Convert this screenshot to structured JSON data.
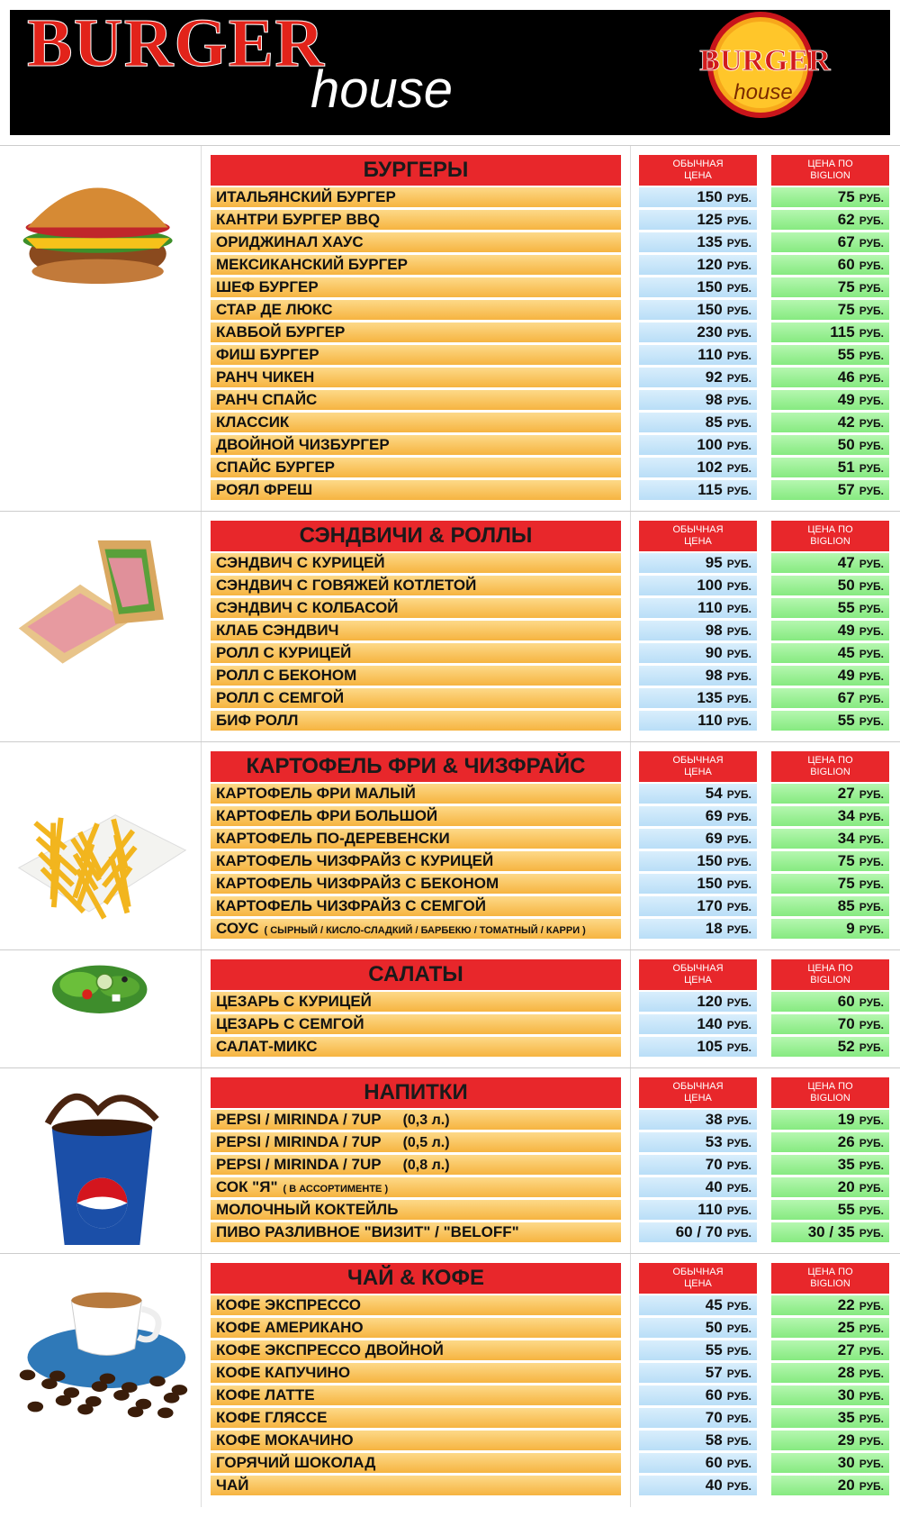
{
  "header": {
    "title": "BURGER",
    "subtitle": "house"
  },
  "logo": {
    "title": "BURGER",
    "subtitle": "house"
  },
  "columns": {
    "regular": "ОБЫЧНАЯ ЦЕНА",
    "biglion": "ЦЕНА ПО BIGLION"
  },
  "currency": "РУБ.",
  "sections": [
    {
      "title": "БУРГЕРЫ",
      "items": [
        {
          "name": "ИТАЛЬЯНСКИЙ БУРГЕР",
          "price": 150,
          "biglion": 75
        },
        {
          "name": "КАНТРИ БУРГЕР BBQ",
          "price": 125,
          "biglion": 62
        },
        {
          "name": "ОРИДЖИНАЛ ХАУС",
          "price": 135,
          "biglion": 67
        },
        {
          "name": "МЕКСИКАНСКИЙ БУРГЕР",
          "price": 120,
          "biglion": 60
        },
        {
          "name": "ШЕФ БУРГЕР",
          "price": 150,
          "biglion": 75
        },
        {
          "name": "СТАР ДЕ ЛЮКС",
          "price": 150,
          "biglion": 75
        },
        {
          "name": "КАВБОЙ БУРГЕР",
          "price": 230,
          "biglion": 115
        },
        {
          "name": "ФИШ БУРГЕР",
          "price": 110,
          "biglion": 55
        },
        {
          "name": "РАНЧ ЧИКЕН",
          "price": 92,
          "biglion": 46
        },
        {
          "name": "РАНЧ СПАЙС",
          "price": 98,
          "biglion": 49
        },
        {
          "name": "КЛАССИК",
          "price": 85,
          "biglion": 42
        },
        {
          "name": "ДВОЙНОЙ ЧИЗБУРГЕР",
          "price": 100,
          "biglion": 50
        },
        {
          "name": "СПАЙС БУРГЕР",
          "price": 102,
          "biglion": 51
        },
        {
          "name": "РОЯЛ ФРЕШ",
          "price": 115,
          "biglion": 57
        }
      ]
    },
    {
      "title": "СЭНДВИЧИ & РОЛЛЫ",
      "items": [
        {
          "name": "СЭНДВИЧ С КУРИЦЕЙ",
          "price": 95,
          "biglion": 47
        },
        {
          "name": "СЭНДВИЧ С ГОВЯЖЕЙ КОТЛЕТОЙ",
          "price": 100,
          "biglion": 50
        },
        {
          "name": "СЭНДВИЧ С КОЛБАСОЙ",
          "price": 110,
          "biglion": 55
        },
        {
          "name": "КЛАБ СЭНДВИЧ",
          "price": 98,
          "biglion": 49
        },
        {
          "name": "РОЛЛ С КУРИЦЕЙ",
          "price": 90,
          "biglion": 45
        },
        {
          "name": "РОЛЛ С БЕКОНОМ",
          "price": 98,
          "biglion": 49
        },
        {
          "name": "РОЛЛ С СЕМГОЙ",
          "price": 135,
          "biglion": 67
        },
        {
          "name": "БИФ РОЛЛ",
          "price": 110,
          "biglion": 55
        }
      ]
    },
    {
      "title": "КАРТОФЕЛЬ ФРИ & ЧИЗФРАЙС",
      "items": [
        {
          "name": "КАРТОФЕЛЬ ФРИ МАЛЫЙ",
          "price": 54,
          "biglion": 27
        },
        {
          "name": "КАРТОФЕЛЬ ФРИ БОЛЬШОЙ",
          "price": 69,
          "biglion": 34
        },
        {
          "name": "КАРТОФЕЛЬ ПО-ДЕРЕВЕНСКИ",
          "price": 69,
          "biglion": 34
        },
        {
          "name": "КАРТОФЕЛЬ ЧИЗФРАЙЗ С КУРИЦЕЙ",
          "price": 150,
          "biglion": 75
        },
        {
          "name": "КАРТОФЕЛЬ ЧИЗФРАЙЗ С БЕКОНОМ",
          "price": 150,
          "biglion": 75
        },
        {
          "name": "КАРТОФЕЛЬ ЧИЗФРАЙЗ С СЕМГОЙ",
          "price": 170,
          "biglion": 85
        },
        {
          "name": "СОУС",
          "note": "( СЫРНЫЙ / КИСЛО-СЛАДКИЙ / БАРБЕКЮ / ТОМАТНЫЙ / КАРРИ )",
          "price": 18,
          "biglion": 9
        }
      ]
    },
    {
      "title": "САЛАТЫ",
      "items": [
        {
          "name": "ЦЕЗАРЬ С КУРИЦЕЙ",
          "price": 120,
          "biglion": 60
        },
        {
          "name": "ЦЕЗАРЬ С СЕМГОЙ",
          "price": 140,
          "biglion": 70
        },
        {
          "name": "САЛАТ-МИКС",
          "price": 105,
          "biglion": 52
        }
      ]
    },
    {
      "title": "НАПИТКИ",
      "items": [
        {
          "name": "PEPSI / MIRINDA / 7UP",
          "note": "(0,3 л.)",
          "price": 38,
          "biglion": 19
        },
        {
          "name": "PEPSI / MIRINDA / 7UP",
          "note": "(0,5 л.)",
          "price": 53,
          "biglion": 26
        },
        {
          "name": "PEPSI / MIRINDA / 7UP",
          "note": "(0,8 л.)",
          "price": 70,
          "biglion": 35
        },
        {
          "name": "СОК \"Я\"",
          "note": "( В АССОРТИМЕНТЕ )",
          "price": 40,
          "biglion": 20
        },
        {
          "name": "МОЛОЧНЫЙ КОКТЕЙЛЬ",
          "price": 110,
          "biglion": 55
        },
        {
          "name": "ПИВО РАЗЛИВНОЕ \"ВИЗИТ\" / \"BELOFF\"",
          "price": "60 / 70",
          "biglion": "30 / 35"
        }
      ]
    },
    {
      "title": "ЧАЙ & КОФЕ",
      "items": [
        {
          "name": "КОФЕ ЭКСПРЕССО",
          "price": 45,
          "biglion": 22
        },
        {
          "name": "КОФЕ АМЕРИКАНО",
          "price": 50,
          "biglion": 25
        },
        {
          "name": "КОФЕ ЭКСПРЕССО ДВОЙНОЙ",
          "price": 55,
          "biglion": 27
        },
        {
          "name": "КОФЕ КАПУЧИНО",
          "price": 57,
          "biglion": 28
        },
        {
          "name": "КОФЕ ЛАТТЕ",
          "price": 60,
          "biglion": 30
        },
        {
          "name": "КОФЕ ГЛЯССЕ",
          "price": 70,
          "biglion": 35
        },
        {
          "name": "КОФЕ МОКАЧИНО",
          "price": 58,
          "biglion": 29
        },
        {
          "name": "ГОРЯЧИЙ ШОКОЛАД",
          "price": 60,
          "biglion": 30
        },
        {
          "name": "ЧАЙ",
          "price": 40,
          "biglion": 20
        }
      ]
    }
  ]
}
